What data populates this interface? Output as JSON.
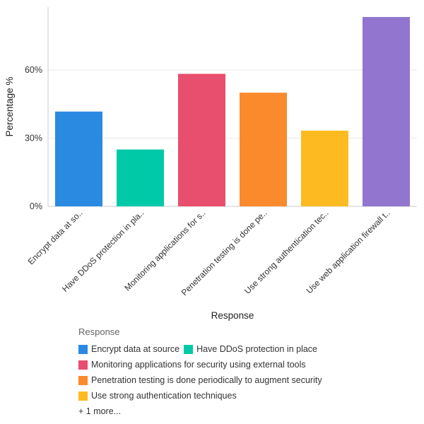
{
  "chart_data": {
    "type": "bar",
    "xlabel": "Response",
    "ylabel": "Percentage %",
    "ylim": [
      0,
      0.85
    ],
    "yticks": [
      0,
      0.3,
      0.6
    ],
    "ytick_labels": [
      "0%",
      "30%",
      "60%"
    ],
    "grid": true,
    "categories": [
      "Encrypt data at source",
      "Have DDoS protection in place",
      "Monitoring applications for security using external tools",
      "Penetration testing is done periodically to augment security",
      "Use strong authentication techniques",
      "Use web application firewall t.."
    ],
    "tick_labels": [
      "Encrypt data at so..",
      "Have DDoS protection in pla..",
      "Monitoring applications for s..",
      "Penetration testing is done pe..",
      "Use strong authentication tec..",
      "Use web application firewall t.."
    ],
    "values": [
      0.417,
      0.25,
      0.583,
      0.5,
      0.333,
      0.833
    ],
    "colors": [
      "#2a8ae2",
      "#00c9a7",
      "#e84e6d",
      "#fa8a2c",
      "#fdbb21",
      "#9175cf"
    ],
    "legend": {
      "title": "Response",
      "placement": "bottom-left",
      "rows": [
        [
          0,
          1
        ],
        [
          2
        ],
        [
          3
        ],
        [
          4
        ]
      ],
      "more": "+ 1 more..."
    }
  }
}
